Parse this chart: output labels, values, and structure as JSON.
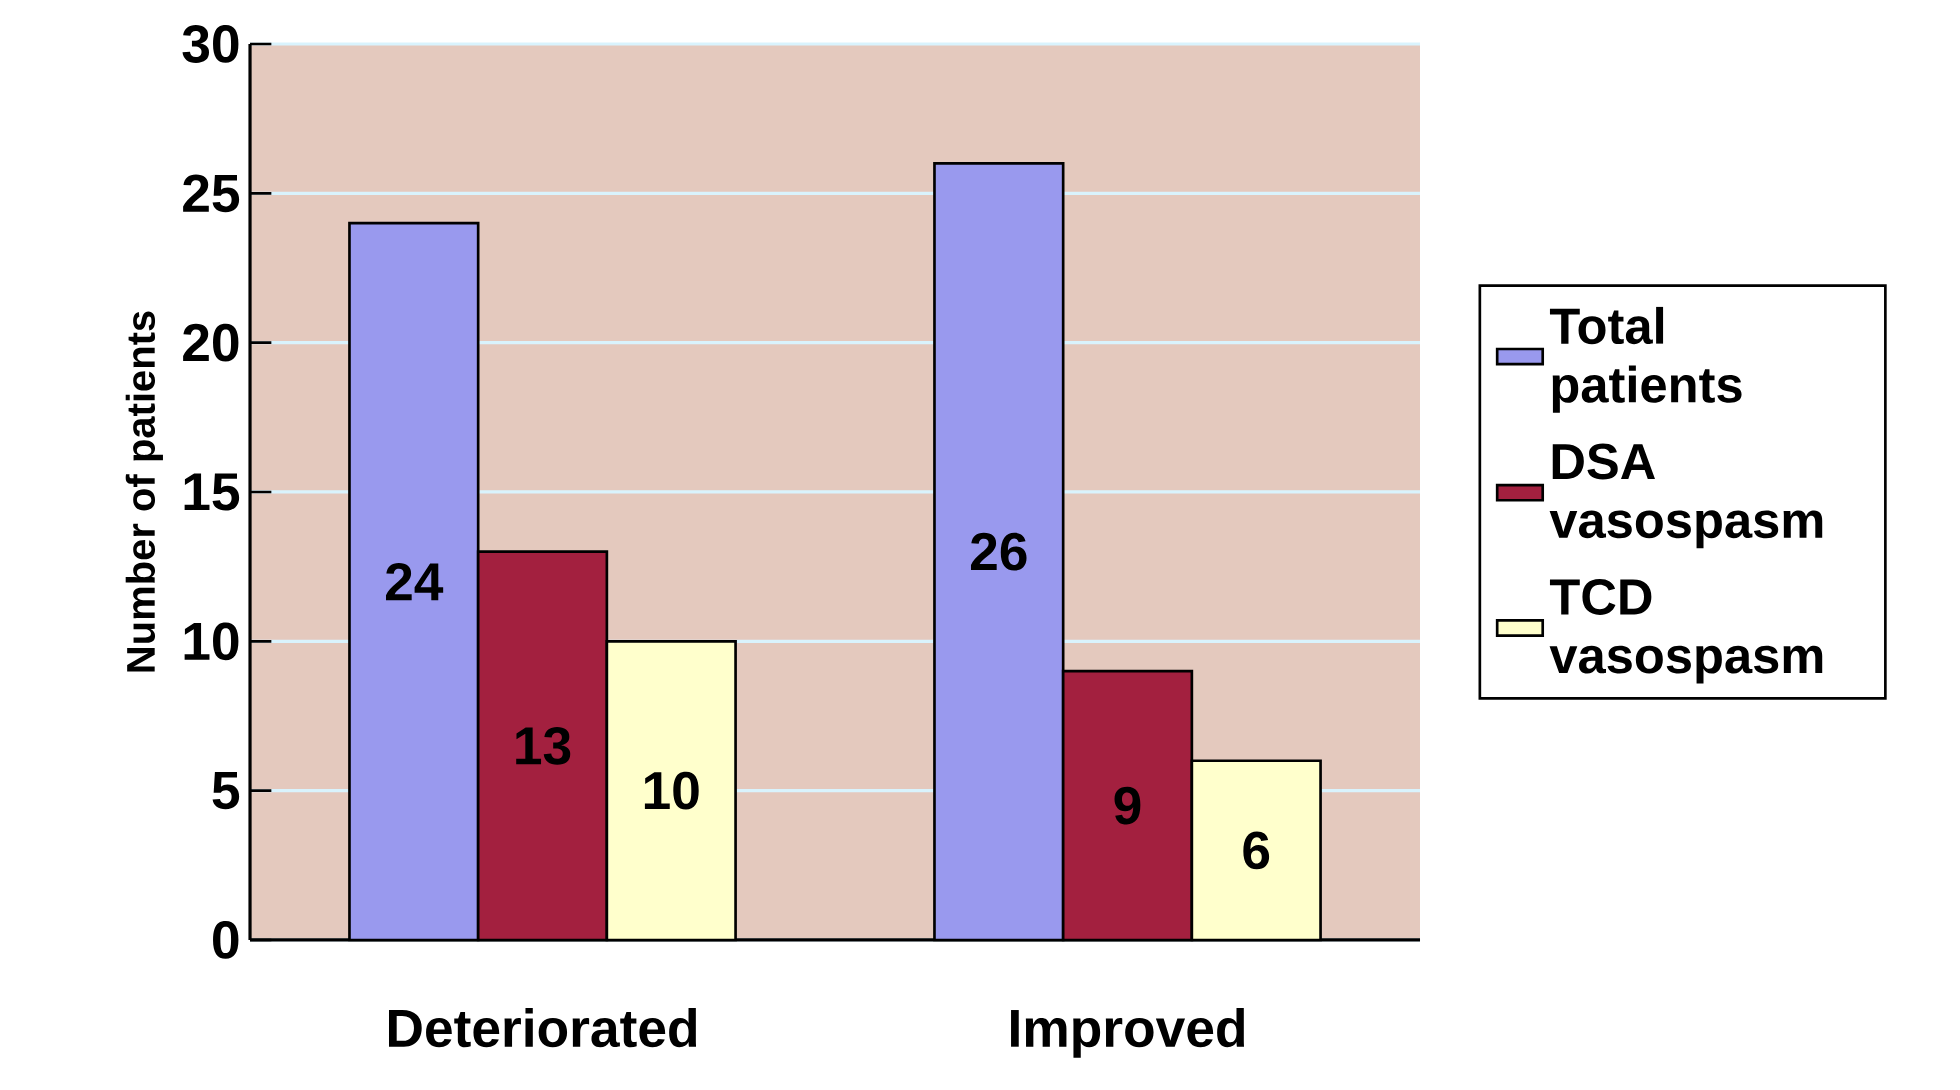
{
  "chart_data": {
    "type": "bar",
    "ylabel": "Number of patients",
    "categories": [
      "Deteriorated",
      "Improved"
    ],
    "series": [
      {
        "name": "Total patients",
        "color": "#9999ee",
        "values": [
          24,
          26
        ]
      },
      {
        "name": "DSA vasospasm",
        "color": "#a3203f",
        "values": [
          13,
          9
        ]
      },
      {
        "name": "TCD vasospasm",
        "color": "#ffffcc",
        "values": [
          10,
          6
        ]
      }
    ],
    "ylim": [
      0,
      30
    ],
    "yticks": [
      0,
      5,
      10,
      15,
      20,
      25,
      30
    ],
    "grid": "y",
    "legend": "right",
    "data_labels": true
  }
}
